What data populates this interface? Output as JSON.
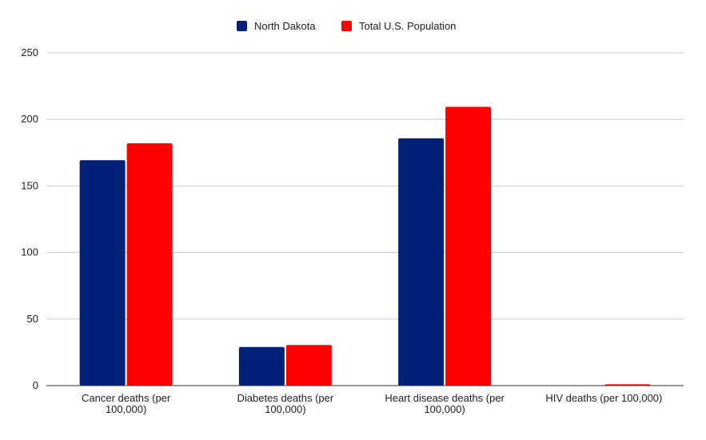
{
  "chart_data": {
    "type": "bar",
    "title": "",
    "xlabel": "",
    "ylabel": "",
    "categories": [
      [
        "Cancer deaths (per",
        "100,000)"
      ],
      [
        "Diabetes deaths (per",
        "100,000)"
      ],
      [
        "Heart disease deaths (per",
        "100,000)"
      ],
      [
        "HIV deaths (per 100,000)"
      ]
    ],
    "series": [
      {
        "name": "North Dakota",
        "color": "#002175",
        "values": [
          169.3,
          29.0,
          185.8,
          0
        ]
      },
      {
        "name": "Total U.S. Population",
        "color": "#ff0000",
        "values": [
          182.0,
          30.5,
          209.4,
          1.0
        ]
      }
    ],
    "ylim": [
      0,
      250
    ],
    "yticks": [
      "0",
      "50",
      "100",
      "150",
      "200",
      "250"
    ],
    "grid": true,
    "legend_position": "top"
  }
}
